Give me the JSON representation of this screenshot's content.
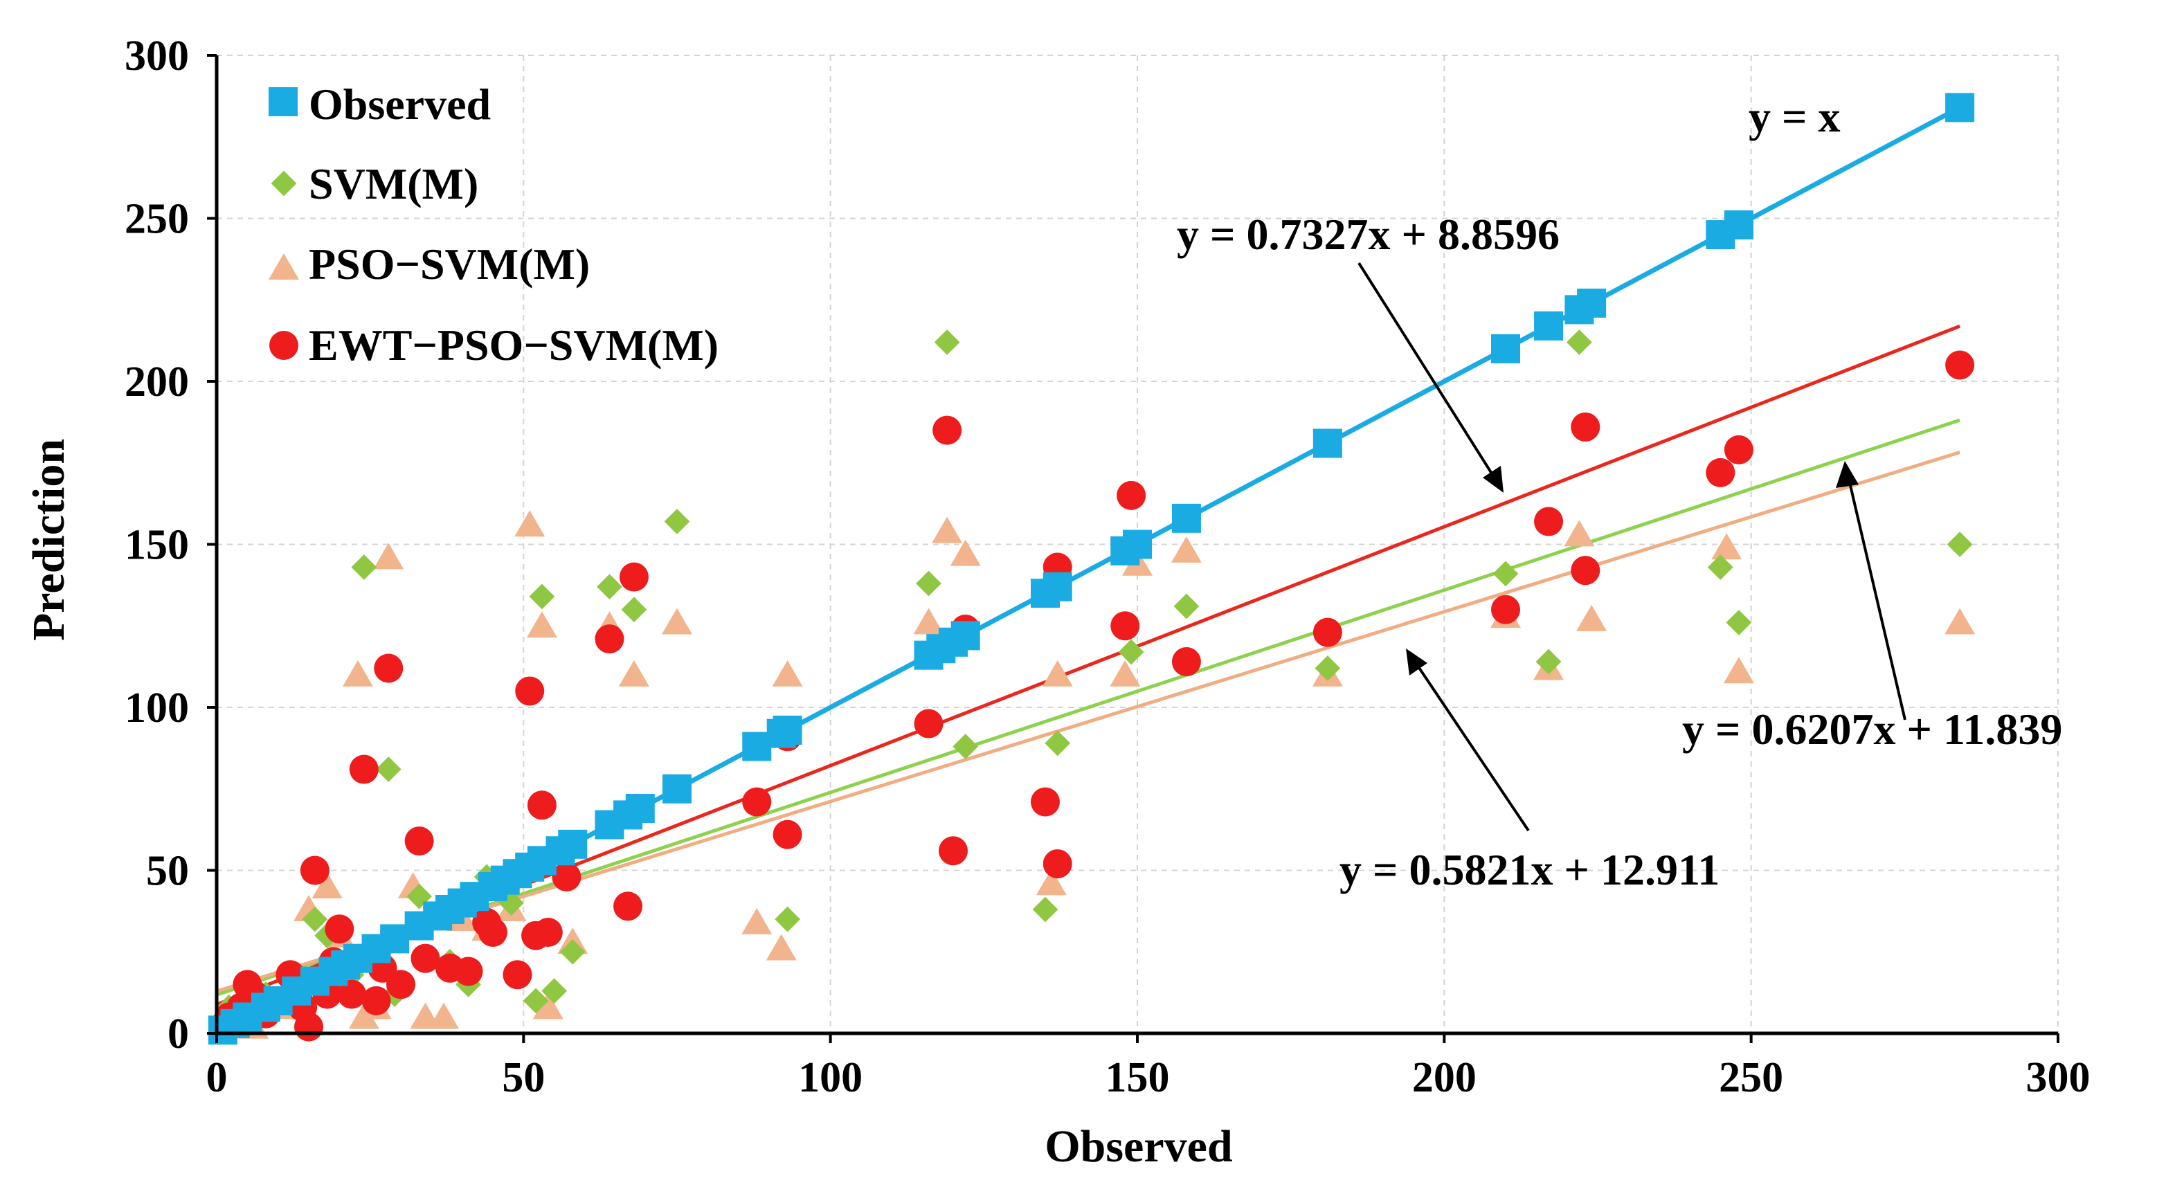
{
  "chart_data": {
    "type": "scatter",
    "title": "",
    "xlabel": "Observed",
    "ylabel": "Prediction",
    "xlim": [
      0,
      300
    ],
    "ylim": [
      0,
      300
    ],
    "xticks": [
      0,
      50,
      100,
      150,
      200,
      250,
      300
    ],
    "yticks": [
      0,
      50,
      100,
      150,
      200,
      250,
      300
    ],
    "grid": true,
    "legend_position": "top-left",
    "colors": {
      "observed": "#1aabe3",
      "svm": "#8fc742",
      "pso": "#f2b48c",
      "ewt": "#ee1c1c",
      "fit_svm": "#8dd24e",
      "fit_pso": "#f0ad82",
      "fit_ewt": "#e8281e"
    },
    "series": [
      {
        "name": "Observed",
        "marker": "square",
        "x": [
          1,
          3,
          5,
          8,
          10,
          13,
          16,
          19,
          21,
          23,
          26,
          29,
          33,
          36,
          38,
          40,
          42,
          45,
          47,
          49,
          51,
          53,
          56,
          58,
          64,
          67,
          69,
          75,
          88,
          92,
          93,
          116,
          118,
          120,
          122,
          135,
          137,
          148,
          150,
          158,
          181,
          210,
          217,
          222,
          224,
          245,
          248,
          284
        ],
        "y": [
          1,
          3,
          5,
          8,
          10,
          13,
          16,
          19,
          21,
          23,
          26,
          29,
          33,
          36,
          38,
          40,
          42,
          45,
          47,
          49,
          51,
          53,
          56,
          58,
          64,
          67,
          69,
          75,
          88,
          92,
          93,
          116,
          118,
          120,
          122,
          135,
          137,
          148,
          150,
          158,
          181,
          210,
          217,
          222,
          224,
          245,
          248,
          284
        ]
      },
      {
        "name": "SVM(M)",
        "marker": "diamond",
        "x": [
          2,
          5,
          8,
          12,
          16,
          18,
          22,
          24,
          28,
          29,
          33,
          38,
          41,
          44,
          48,
          52,
          53,
          55,
          58,
          64,
          68,
          75,
          93,
          116,
          119,
          122,
          135,
          137,
          149,
          158,
          181,
          210,
          217,
          222,
          245,
          248,
          284
        ],
        "y": [
          8,
          5,
          12,
          10,
          35,
          30,
          18,
          143,
          81,
          12,
          42,
          22,
          15,
          48,
          40,
          10,
          134,
          13,
          25,
          137,
          130,
          157,
          35,
          138,
          212,
          88,
          38,
          89,
          117,
          131,
          112,
          141,
          114,
          212,
          143,
          126,
          150
        ]
      },
      {
        "name": "PSO−SVM(M)",
        "marker": "triangle",
        "x": [
          2,
          4,
          6,
          9,
          12,
          15,
          18,
          20,
          23,
          24,
          26,
          28,
          32,
          34,
          37,
          40,
          44,
          48,
          51,
          53,
          54,
          58,
          64,
          68,
          75,
          88,
          92,
          93,
          116,
          119,
          122,
          136,
          137,
          148,
          150,
          158,
          181,
          210,
          217,
          222,
          224,
          246,
          248,
          284
        ],
        "y": [
          3,
          6,
          2,
          10,
          8,
          38,
          45,
          30,
          110,
          5,
          8,
          146,
          45,
          5,
          5,
          35,
          32,
          38,
          156,
          125,
          8,
          28,
          125,
          110,
          126,
          34,
          26,
          110,
          126,
          154,
          147,
          46,
          110,
          110,
          144,
          148,
          110,
          128,
          112,
          153,
          127,
          149,
          111,
          126
        ]
      },
      {
        "name": "EWT−PSO−SVM(M)",
        "marker": "circle",
        "x": [
          1,
          2,
          3,
          4,
          5,
          6,
          8,
          10,
          12,
          14,
          15,
          16,
          18,
          19,
          20,
          22,
          24,
          26,
          27,
          28,
          30,
          33,
          34,
          38,
          41,
          44,
          45,
          47,
          49,
          51,
          52,
          53,
          54,
          57,
          64,
          67,
          68,
          88,
          93,
          93,
          116,
          119,
          120,
          122,
          135,
          137,
          137,
          148,
          149,
          158,
          181,
          210,
          217,
          223,
          223,
          245,
          248,
          284
        ],
        "y": [
          2,
          5,
          3,
          8,
          15,
          12,
          6,
          10,
          18,
          8,
          2,
          50,
          12,
          22,
          32,
          12,
          81,
          10,
          20,
          112,
          15,
          59,
          23,
          20,
          19,
          34,
          31,
          47,
          18,
          105,
          30,
          70,
          31,
          48,
          121,
          39,
          140,
          71,
          61,
          91,
          95,
          185,
          56,
          124,
          71,
          52,
          143,
          125,
          165,
          114,
          123,
          130,
          157,
          186,
          142,
          172,
          179,
          205
        ]
      }
    ],
    "lines": [
      {
        "name": "",
        "label": "y = x",
        "slope": 1,
        "intercept": 0,
        "x_range": [
          1,
          284
        ]
      },
      {
        "name": "",
        "label": "y = 0.7327x + 8.8596",
        "slope": 0.7327,
        "intercept": 8.8596,
        "x_range": [
          0,
          284
        ]
      },
      {
        "name": "",
        "label": "y = 0.6207x + 11.839",
        "slope": 0.6207,
        "intercept": 11.839,
        "x_range": [
          0,
          284
        ]
      },
      {
        "name": "",
        "label": "y = 0.5821x + 12.911",
        "slope": 0.5821,
        "intercept": 12.911,
        "x_range": [
          0,
          284
        ]
      }
    ]
  }
}
